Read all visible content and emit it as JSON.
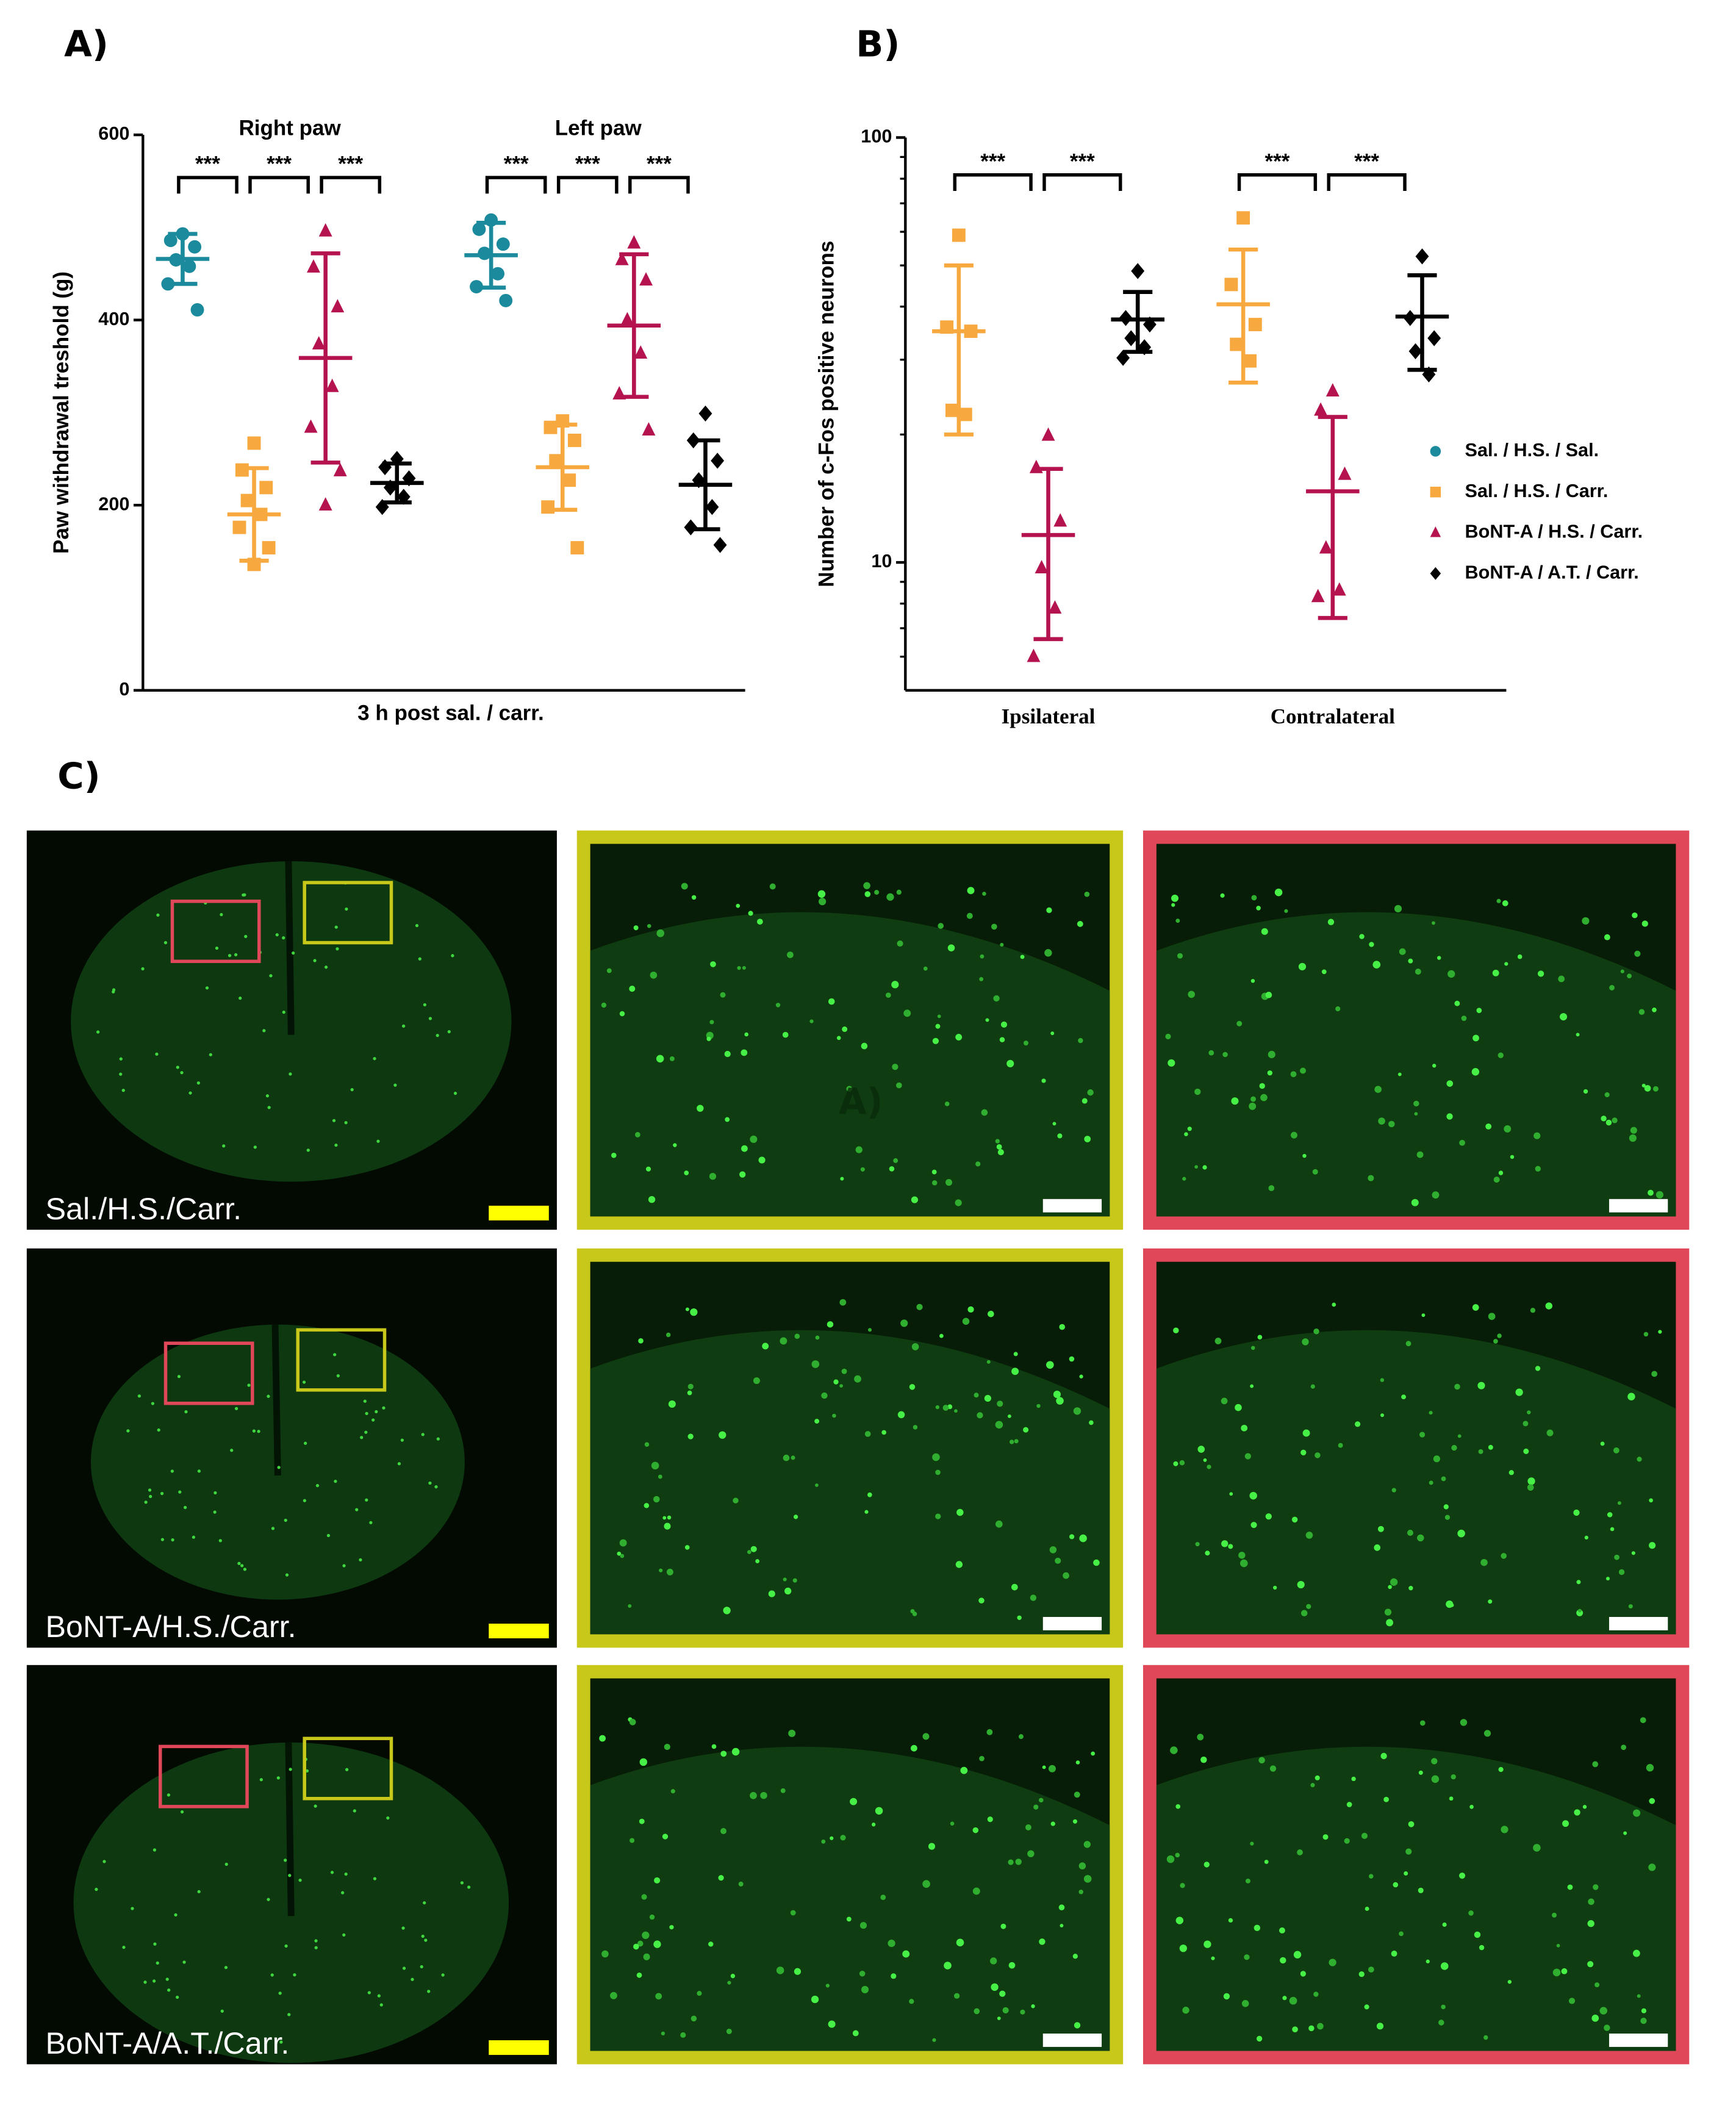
{
  "panel_labels": {
    "a": "A)",
    "b": "B)",
    "c": "C)"
  },
  "chart_data": [
    {
      "type": "dot",
      "categories": [
        "Right paw",
        "Left paw"
      ],
      "xlabel": "3 h post sal. / carr.",
      "ylabel": "Paw withdrawal treshold (g)",
      "ylim": [
        0,
        600
      ],
      "yticks": [
        0,
        200,
        400,
        600
      ],
      "series": [
        {
          "color": "#1a8a9c",
          "marker": "circle",
          "values": [
            [
              493,
              486,
              479,
              465,
              458,
              439,
              411
            ],
            [
              508,
              498,
              482,
              472,
              450,
              436,
              421
            ]
          ],
          "means": [
            466,
            470
          ],
          "sds": [
            27,
            35
          ]
        },
        {
          "color": "#f7a940",
          "marker": "square",
          "values": [
            [
              267,
              238,
              219,
              205,
              190,
              176,
              154,
              136
            ],
            [
              291,
              284,
              270,
              248,
              227,
              198,
              154
            ]
          ],
          "means": [
            190,
            241
          ],
          "sds": [
            50,
            46
          ]
        },
        {
          "color": "#b5134f",
          "marker": "triangle",
          "values": [
            [
              496,
              457,
              414,
              374,
              328,
              284,
              237,
              200
            ],
            [
              483,
              465,
              443,
              400,
              364,
              320,
              281
            ]
          ],
          "means": [
            359,
            394
          ],
          "sds": [
            113,
            77
          ]
        },
        {
          "color": "#000000",
          "marker": "diamond",
          "values": [
            [
              250,
              241,
              229,
              219,
              209,
              198
            ],
            [
              299,
              270,
              248,
              227,
              198,
              176,
              157
            ]
          ],
          "means": [
            224,
            222
          ],
          "sds": [
            21,
            48
          ]
        }
      ],
      "significance": [
        [
          "***",
          "***",
          "***"
        ],
        [
          "***",
          "***",
          "***"
        ]
      ]
    },
    {
      "type": "dot",
      "categories": [
        "Ipsilateral",
        "Contralateral"
      ],
      "ylabel": "Number of c-Fos positive neurons",
      "log_y": true,
      "ylim": [
        5,
        100
      ],
      "yticks": [
        10,
        100
      ],
      "minor_yticks": [
        6,
        7,
        8,
        9,
        20,
        30,
        40,
        50,
        60,
        70,
        80,
        90
      ],
      "series": [
        {
          "name": "Sal. / H.S. / Sal.",
          "color": "#1a8a9c",
          "marker": "circle",
          "values": [
            [],
            []
          ],
          "means": [
            null,
            null
          ],
          "sds": [
            null,
            null
          ]
        },
        {
          "name": "Sal. / H.S. / Carr.",
          "color": "#f7a940",
          "marker": "square",
          "values": [
            [
              58.9,
              35.8,
              35,
              22.8,
              22.3
            ],
            [
              64.7,
              45.1,
              36.3,
              32.6,
              29.8
            ]
          ],
          "means": [
            35,
            40.5
          ],
          "sds": [
            15,
            14
          ]
        },
        {
          "name": "BoNT-A / H.S. / Carr.",
          "color": "#b5134f",
          "marker": "triangle",
          "values": [
            [
              19.9,
              16.7,
              12.5,
              9.7,
              7.8,
              6.0
            ],
            [
              25.3,
              22.8,
              16.1,
              10.8,
              8.6,
              8.3
            ]
          ],
          "means": [
            11.6,
            14.7
          ],
          "sds": [
            5,
            7.3
          ]
        },
        {
          "name": "BoNT-A / A.T. / Carr.",
          "color": "#000000",
          "marker": "diamond",
          "values": [
            [
              48.5,
              37.6,
              36.3,
              33.7,
              32.1,
              30.3
            ],
            [
              52.5,
              37.6,
              33.7,
              31.4,
              27.7
            ]
          ],
          "means": [
            37.3,
            37.9
          ],
          "sds": [
            6,
            9.5
          ]
        }
      ],
      "legend": "right",
      "significance": [
        [
          "***",
          "***"
        ],
        [
          "***",
          "***"
        ]
      ]
    }
  ],
  "images": {
    "rows": [
      {
        "label": "Sal./H.S./Carr.",
        "overlay": "A)"
      },
      {
        "label": "BoNT-A/H.S./Carr."
      },
      {
        "label": "BoNT-A/A.T./Carr."
      }
    ]
  }
}
